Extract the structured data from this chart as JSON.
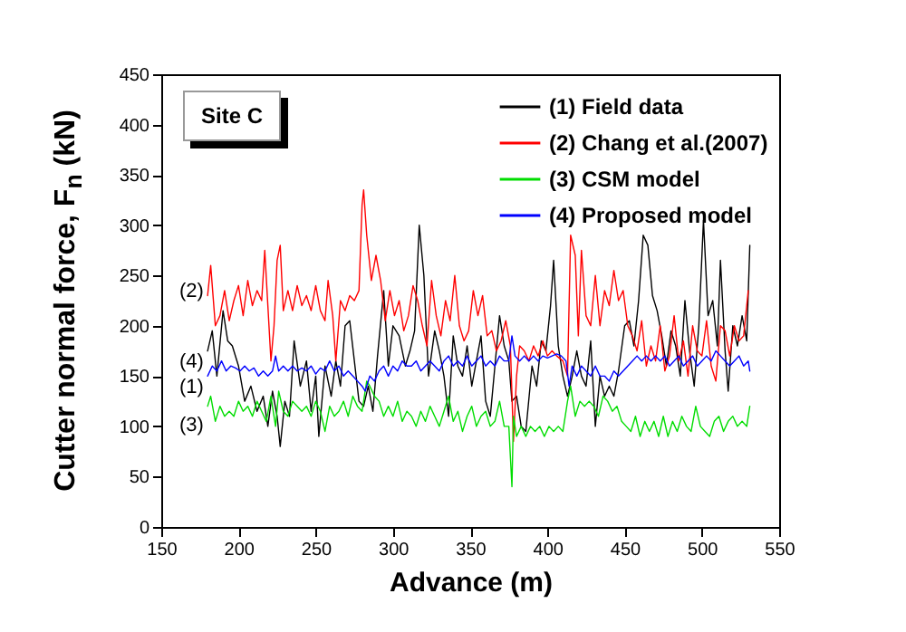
{
  "chart_data": {
    "type": "line",
    "xlabel": "Advance (m)",
    "ylabel": "Cutter normal force, F$_{n}$ (kN)",
    "xlim": [
      150,
      550
    ],
    "xticks": [
      150,
      200,
      250,
      300,
      350,
      400,
      450,
      500,
      550
    ],
    "ylim": [
      0,
      450
    ],
    "yticks": [
      0,
      50,
      100,
      150,
      200,
      250,
      300,
      350,
      400,
      450
    ],
    "grid": false,
    "legend": "top right",
    "annotations": [
      "Site C",
      "(2)",
      "(4)",
      "(1)",
      "(3)"
    ],
    "series": [
      {
        "name": "(1) Field data",
        "color": "#000000",
        "x": [
          180,
          183,
          186,
          190,
          193,
          196,
          200,
          204,
          208,
          212,
          216,
          219,
          222,
          225,
          227,
          230,
          233,
          236,
          240,
          244,
          247,
          250,
          252,
          256,
          260,
          263,
          266,
          269,
          272,
          275,
          278,
          281,
          284,
          287,
          290,
          294,
          297,
          300,
          304,
          308,
          311,
          314,
          317,
          320,
          323,
          327,
          330,
          333,
          336,
          339,
          342,
          345,
          348,
          351,
          354,
          357,
          360,
          363,
          366,
          369,
          372,
          375,
          377,
          380,
          383,
          386,
          390,
          393,
          396,
          399,
          402,
          404,
          407,
          410,
          413,
          416,
          419,
          422,
          425,
          428,
          431,
          434,
          437,
          440,
          443,
          446,
          450,
          453,
          456,
          459,
          462,
          465,
          468,
          471,
          474,
          477,
          480,
          483,
          486,
          489,
          492,
          495,
          498,
          501,
          504,
          507,
          510,
          512,
          515,
          517,
          520,
          523,
          526,
          529,
          531
        ],
        "values": [
          175,
          195,
          150,
          215,
          185,
          180,
          160,
          125,
          140,
          115,
          130,
          100,
          135,
          110,
          80,
          125,
          110,
          185,
          140,
          165,
          115,
          150,
          90,
          160,
          130,
          165,
          140,
          200,
          205,
          165,
          125,
          120,
          140,
          115,
          170,
          235,
          160,
          200,
          190,
          160,
          175,
          195,
          300,
          250,
          150,
          195,
          175,
          150,
          110,
          190,
          160,
          150,
          180,
          140,
          165,
          190,
          125,
          110,
          160,
          210,
          180,
          165,
          125,
          130,
          100,
          95,
          160,
          140,
          185,
          175,
          220,
          265,
          180,
          150,
          130,
          150,
          175,
          150,
          140,
          185,
          100,
          150,
          130,
          140,
          130,
          155,
          200,
          205,
          180,
          225,
          290,
          280,
          230,
          215,
          190,
          160,
          195,
          180,
          150,
          225,
          175,
          140,
          200,
          305,
          210,
          225,
          180,
          265,
          175,
          135,
          200,
          180,
          210,
          185,
          280
        ]
      },
      {
        "name": "(2) Chang et al.(2007)",
        "color": "#ff0000",
        "x": [
          180,
          182,
          185,
          188,
          191,
          194,
          197,
          200,
          203,
          206,
          209,
          212,
          215,
          217,
          219,
          221,
          223,
          225,
          227,
          229,
          232,
          235,
          238,
          241,
          244,
          247,
          250,
          253,
          256,
          258,
          261,
          263,
          266,
          269,
          272,
          275,
          278,
          280,
          281,
          283,
          286,
          289,
          292,
          295,
          298,
          301,
          304,
          307,
          310,
          313,
          316,
          319,
          322,
          325,
          328,
          331,
          334,
          337,
          340,
          343,
          346,
          349,
          352,
          355,
          358,
          361,
          364,
          367,
          370,
          373,
          376,
          378,
          380,
          382,
          385,
          388,
          391,
          394,
          397,
          400,
          403,
          406,
          410,
          413,
          415,
          418,
          420,
          422,
          425,
          428,
          431,
          434,
          437,
          440,
          443,
          446,
          449,
          452,
          455,
          458,
          461,
          464,
          467,
          470,
          473,
          476,
          479,
          482,
          485,
          488,
          491,
          494,
          497,
          500,
          503,
          506,
          509,
          512,
          515,
          518,
          521,
          524,
          527,
          530
        ],
        "values": [
          230,
          260,
          200,
          210,
          235,
          205,
          225,
          240,
          210,
          245,
          220,
          235,
          225,
          275,
          220,
          165,
          200,
          265,
          280,
          215,
          235,
          215,
          240,
          220,
          230,
          215,
          240,
          215,
          205,
          245,
          210,
          165,
          225,
          215,
          230,
          225,
          235,
          320,
          335,
          290,
          245,
          270,
          245,
          205,
          235,
          210,
          225,
          195,
          210,
          240,
          225,
          200,
          180,
          245,
          210,
          190,
          225,
          205,
          250,
          200,
          185,
          195,
          235,
          210,
          230,
          190,
          195,
          175,
          185,
          205,
          180,
          85,
          150,
          180,
          175,
          165,
          180,
          170,
          185,
          170,
          175,
          170,
          165,
          150,
          290,
          270,
          190,
          275,
          210,
          200,
          250,
          200,
          235,
          220,
          255,
          225,
          235,
          200,
          190,
          175,
          205,
          160,
          180,
          165,
          200,
          155,
          170,
          210,
          165,
          185,
          150,
          200,
          175,
          170,
          205,
          160,
          145,
          200,
          195,
          170,
          200,
          185,
          190,
          235
        ]
      },
      {
        "name": "(3) CSM model",
        "color": "#00dd00",
        "x": [
          180,
          182,
          185,
          188,
          191,
          194,
          197,
          200,
          203,
          206,
          209,
          212,
          215,
          218,
          221,
          224,
          226,
          229,
          232,
          235,
          238,
          241,
          244,
          247,
          250,
          253,
          256,
          259,
          262,
          265,
          268,
          271,
          274,
          277,
          280,
          283,
          285,
          288,
          291,
          294,
          297,
          300,
          303,
          306,
          309,
          312,
          315,
          318,
          321,
          324,
          327,
          330,
          333,
          336,
          339,
          342,
          345,
          348,
          351,
          354,
          357,
          360,
          363,
          366,
          369,
          372,
          375,
          377,
          378,
          380,
          383,
          386,
          389,
          392,
          395,
          398,
          401,
          404,
          407,
          410,
          413,
          415,
          418,
          421,
          424,
          427,
          430,
          433,
          436,
          439,
          442,
          445,
          448,
          451,
          454,
          457,
          460,
          463,
          466,
          469,
          472,
          475,
          478,
          481,
          484,
          487,
          490,
          493,
          496,
          499,
          502,
          505,
          508,
          511,
          514,
          517,
          520,
          523,
          526,
          529,
          531
        ],
        "values": [
          120,
          130,
          105,
          120,
          110,
          115,
          110,
          125,
          115,
          120,
          110,
          125,
          115,
          105,
          130,
          100,
          135,
          115,
          110,
          125,
          120,
          115,
          120,
          110,
          125,
          115,
          95,
          120,
          110,
          115,
          125,
          110,
          130,
          120,
          115,
          145,
          140,
          130,
          125,
          110,
          120,
          110,
          125,
          105,
          115,
          110,
          100,
          115,
          105,
          120,
          110,
          100,
          115,
          130,
          105,
          115,
          95,
          110,
          120,
          100,
          110,
          115,
          100,
          105,
          125,
          100,
          100,
          40,
          110,
          90,
          100,
          90,
          100,
          95,
          100,
          90,
          100,
          95,
          100,
          95,
          125,
          140,
          110,
          125,
          120,
          125,
          120,
          110,
          130,
          125,
          115,
          120,
          105,
          100,
          95,
          110,
          90,
          105,
          95,
          105,
          90,
          110,
          90,
          105,
          95,
          110,
          100,
          95,
          120,
          100,
          95,
          90,
          105,
          110,
          95,
          105,
          110,
          100,
          105,
          100,
          120
        ]
      },
      {
        "name": "(4) Proposed model",
        "color": "#0000ff",
        "x": [
          180,
          183,
          186,
          189,
          192,
          195,
          198,
          201,
          204,
          207,
          210,
          213,
          216,
          219,
          222,
          224,
          226,
          229,
          232,
          235,
          238,
          241,
          244,
          247,
          250,
          253,
          256,
          259,
          262,
          265,
          268,
          271,
          274,
          277,
          280,
          282,
          285,
          288,
          291,
          294,
          297,
          300,
          303,
          306,
          309,
          312,
          315,
          318,
          321,
          324,
          327,
          330,
          333,
          336,
          339,
          342,
          345,
          348,
          351,
          354,
          357,
          360,
          363,
          366,
          369,
          372,
          375,
          377,
          379,
          382,
          385,
          388,
          391,
          394,
          397,
          400,
          403,
          406,
          409,
          412,
          414,
          416,
          419,
          422,
          425,
          428,
          431,
          434,
          437,
          440,
          443,
          446,
          449,
          452,
          455,
          458,
          461,
          464,
          467,
          470,
          473,
          476,
          479,
          482,
          485,
          488,
          491,
          494,
          497,
          500,
          503,
          506,
          509,
          512,
          515,
          518,
          521,
          524,
          527,
          530,
          531
        ],
        "values": [
          150,
          160,
          155,
          165,
          155,
          160,
          158,
          155,
          160,
          155,
          158,
          150,
          155,
          150,
          155,
          170,
          155,
          160,
          155,
          160,
          155,
          158,
          155,
          160,
          152,
          158,
          155,
          165,
          155,
          160,
          150,
          155,
          150,
          145,
          140,
          135,
          150,
          145,
          155,
          160,
          150,
          160,
          155,
          165,
          160,
          160,
          165,
          155,
          160,
          165,
          160,
          155,
          165,
          170,
          160,
          165,
          160,
          170,
          160,
          165,
          170,
          160,
          165,
          160,
          170,
          165,
          165,
          190,
          170,
          165,
          170,
          165,
          170,
          165,
          170,
          168,
          170,
          172,
          170,
          165,
          140,
          160,
          150,
          160,
          155,
          150,
          160,
          150,
          150,
          145,
          155,
          150,
          155,
          160,
          165,
          170,
          165,
          170,
          165,
          170,
          165,
          170,
          160,
          165,
          170,
          160,
          165,
          170,
          160,
          165,
          170,
          165,
          175,
          170,
          165,
          160,
          165,
          170,
          160,
          165,
          155
        ]
      }
    ]
  }
}
